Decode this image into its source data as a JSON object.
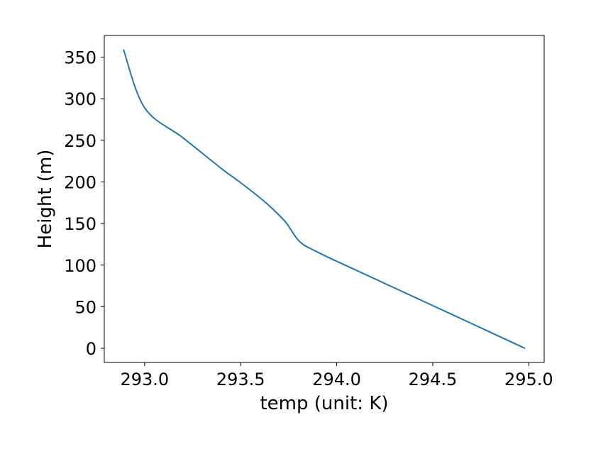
{
  "chart_data": {
    "type": "line",
    "title": "",
    "xlabel": "temp (unit: K)",
    "ylabel": "Height (m)",
    "xlim": [
      292.79,
      295.08
    ],
    "ylim": [
      -17,
      376
    ],
    "xticks": [
      293.0,
      293.5,
      294.0,
      294.5,
      295.0
    ],
    "xtick_labels": [
      "293.0",
      "293.5",
      "294.0",
      "294.5",
      "295.0"
    ],
    "yticks": [
      0,
      50,
      100,
      150,
      200,
      250,
      300,
      350
    ],
    "ytick_labels": [
      "0",
      "50",
      "100",
      "150",
      "200",
      "250",
      "300",
      "350"
    ],
    "grid": false,
    "legend": "none",
    "series": [
      {
        "color": "#1f77b4",
        "x": [
          294.98,
          294.7,
          294.4,
          294.1,
          293.95,
          293.88,
          293.83,
          293.8,
          293.78,
          293.76,
          293.74,
          293.7,
          293.65,
          293.6,
          293.5,
          293.4,
          293.2,
          293.0,
          292.89
        ],
        "y": [
          0,
          30,
          62,
          94,
          110,
          118,
          124,
          130,
          136,
          143,
          150,
          160,
          171,
          181,
          199,
          216,
          253,
          289,
          359
        ]
      }
    ]
  }
}
